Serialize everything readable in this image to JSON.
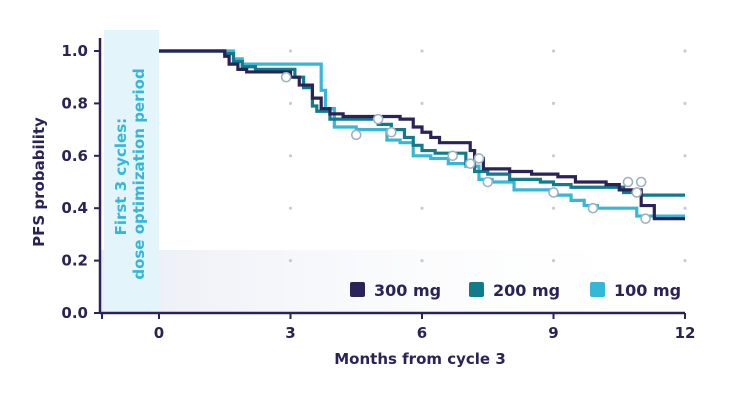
{
  "chart_data": {
    "type": "line",
    "subtype": "kaplan-meier step",
    "xlabel": "Months from cycle 3",
    "ylabel": "PFS probability",
    "xlim": [
      -2.6,
      12
    ],
    "ylim": [
      0,
      1.05
    ],
    "x_ticks": [
      0,
      3,
      6,
      9,
      12
    ],
    "y_ticks": [
      0.0,
      0.2,
      0.4,
      0.6,
      0.8,
      1.0
    ],
    "x_tick_labels": [
      "0",
      "3",
      "6",
      "9",
      "12"
    ],
    "y_tick_labels": [
      "0.0",
      "0.2",
      "0.4",
      "0.6",
      "0.8",
      "1.0"
    ],
    "grid": "dotted points",
    "legend_position": "bottom-right",
    "band": {
      "x_range": [
        -1.3,
        0
      ],
      "label_line1": "First 3 cycles:",
      "label_line2": "dose optimization period"
    },
    "series": [
      {
        "name": "300 mg",
        "color": "#2a2357",
        "steps": [
          [
            0,
            1.0
          ],
          [
            1.3,
            1.0
          ],
          [
            1.5,
            0.98
          ],
          [
            1.6,
            0.95
          ],
          [
            1.8,
            0.93
          ],
          [
            2.0,
            0.92
          ],
          [
            2.5,
            0.92
          ],
          [
            3.0,
            0.9
          ],
          [
            3.2,
            0.87
          ],
          [
            3.5,
            0.82
          ],
          [
            3.7,
            0.78
          ],
          [
            3.9,
            0.76
          ],
          [
            4.2,
            0.75
          ],
          [
            5.0,
            0.75
          ],
          [
            5.5,
            0.74
          ],
          [
            5.8,
            0.71
          ],
          [
            6.0,
            0.69
          ],
          [
            6.2,
            0.67
          ],
          [
            6.4,
            0.65
          ],
          [
            7.0,
            0.65
          ],
          [
            7.1,
            0.62
          ],
          [
            7.2,
            0.59
          ],
          [
            7.4,
            0.55
          ],
          [
            8.0,
            0.54
          ],
          [
            8.5,
            0.53
          ],
          [
            9.1,
            0.52
          ],
          [
            9.5,
            0.5
          ],
          [
            10.2,
            0.49
          ],
          [
            10.5,
            0.47
          ],
          [
            11.0,
            0.41
          ],
          [
            11.3,
            0.36
          ],
          [
            12.0,
            0.36
          ]
        ],
        "censors": [
          [
            2.9,
            0.9
          ],
          [
            7.3,
            0.59
          ],
          [
            10.9,
            0.46
          ]
        ]
      },
      {
        "name": "200 mg",
        "color": "#117a8b",
        "steps": [
          [
            0,
            1.0
          ],
          [
            1.4,
            1.0
          ],
          [
            1.5,
            0.99
          ],
          [
            1.7,
            0.96
          ],
          [
            1.9,
            0.94
          ],
          [
            2.2,
            0.93
          ],
          [
            3.0,
            0.93
          ],
          [
            3.1,
            0.9
          ],
          [
            3.3,
            0.86
          ],
          [
            3.5,
            0.79
          ],
          [
            3.6,
            0.77
          ],
          [
            3.9,
            0.74
          ],
          [
            4.5,
            0.74
          ],
          [
            5.0,
            0.72
          ],
          [
            5.3,
            0.7
          ],
          [
            5.6,
            0.67
          ],
          [
            5.8,
            0.64
          ],
          [
            6.0,
            0.62
          ],
          [
            6.3,
            0.61
          ],
          [
            6.8,
            0.61
          ],
          [
            7.0,
            0.57
          ],
          [
            7.2,
            0.54
          ],
          [
            7.5,
            0.53
          ],
          [
            8.0,
            0.51
          ],
          [
            8.7,
            0.5
          ],
          [
            9.0,
            0.49
          ],
          [
            9.4,
            0.48
          ],
          [
            10.0,
            0.48
          ],
          [
            10.6,
            0.46
          ],
          [
            11.0,
            0.45
          ],
          [
            12.0,
            0.45
          ]
        ],
        "censors": [
          [
            5.0,
            0.74
          ],
          [
            6.7,
            0.6
          ],
          [
            7.1,
            0.57
          ],
          [
            10.7,
            0.5
          ]
        ]
      },
      {
        "name": "100 mg",
        "color": "#35b7d8",
        "steps": [
          [
            0,
            1.0
          ],
          [
            1.6,
            1.0
          ],
          [
            1.7,
            0.97
          ],
          [
            1.9,
            0.95
          ],
          [
            2.2,
            0.95
          ],
          [
            3.6,
            0.95
          ],
          [
            3.7,
            0.85
          ],
          [
            3.8,
            0.78
          ],
          [
            4.0,
            0.71
          ],
          [
            4.5,
            0.7
          ],
          [
            5.0,
            0.7
          ],
          [
            5.2,
            0.66
          ],
          [
            5.5,
            0.65
          ],
          [
            5.8,
            0.6
          ],
          [
            6.2,
            0.59
          ],
          [
            6.6,
            0.57
          ],
          [
            7.0,
            0.56
          ],
          [
            7.3,
            0.51
          ],
          [
            7.6,
            0.5
          ],
          [
            8.1,
            0.47
          ],
          [
            8.5,
            0.47
          ],
          [
            9.0,
            0.45
          ],
          [
            9.4,
            0.43
          ],
          [
            9.7,
            0.41
          ],
          [
            10.0,
            0.4
          ],
          [
            10.8,
            0.4
          ],
          [
            10.9,
            0.37
          ],
          [
            12.0,
            0.37
          ]
        ],
        "censors": [
          [
            4.5,
            0.68
          ],
          [
            5.3,
            0.69
          ],
          [
            7.5,
            0.5
          ],
          [
            9.0,
            0.46
          ],
          [
            9.9,
            0.4
          ],
          [
            11.0,
            0.5
          ],
          [
            11.1,
            0.36
          ]
        ]
      }
    ]
  }
}
